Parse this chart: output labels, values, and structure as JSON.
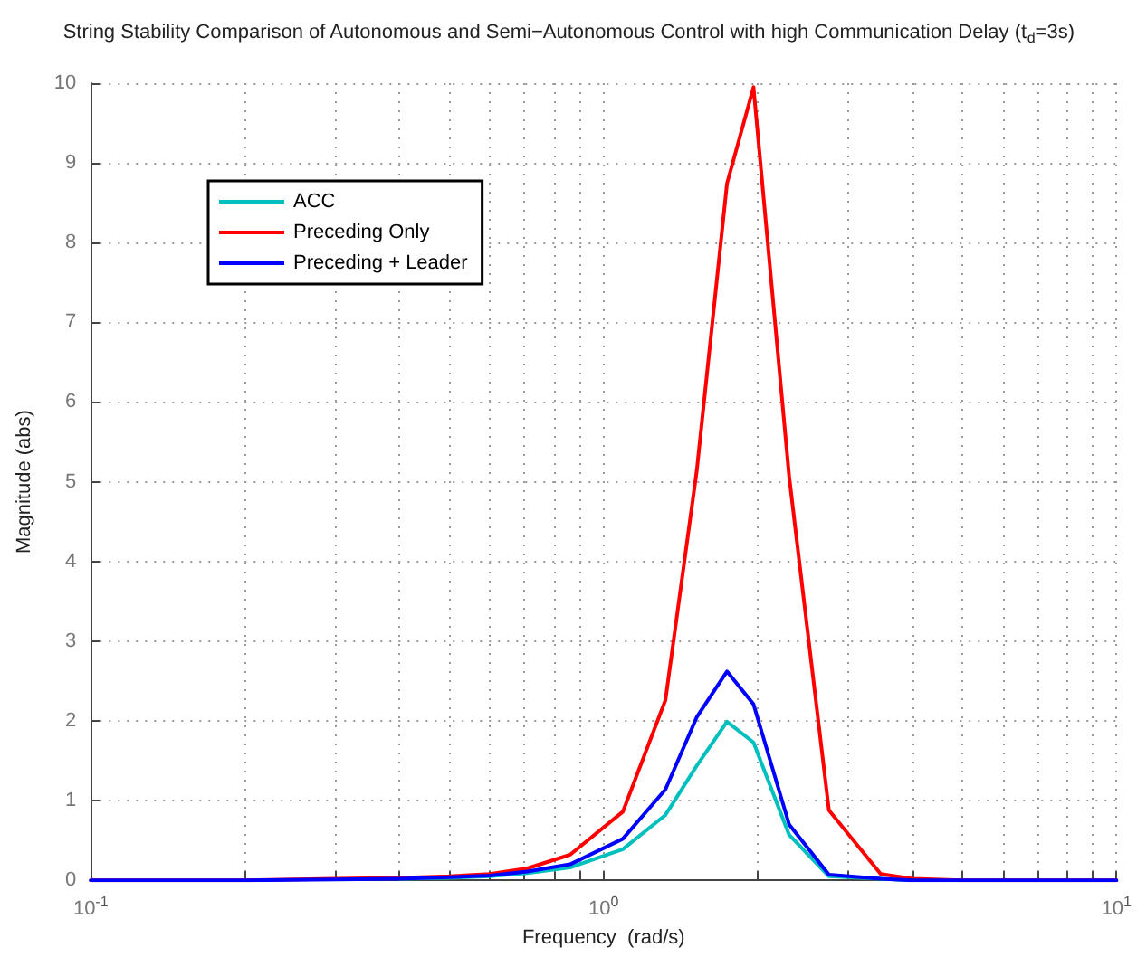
{
  "chart_data": {
    "type": "line",
    "title": "String Stability Comparison of Autonomous and Semi−Autonomous Control with high Communication Delay (t$_{d}$=3s)",
    "xlabel": "Frequency  (rad/s)",
    "ylabel": "Magnitude (abs)",
    "x": [
      0.1,
      0.2,
      0.3,
      0.4,
      0.5,
      0.6,
      0.71,
      0.86,
      1.09,
      1.32,
      1.52,
      1.74,
      1.96,
      2.3,
      2.75,
      3.47,
      4.0,
      5,
      7,
      10
    ],
    "series": [
      {
        "name": "ACC",
        "color": "#00bfbf",
        "values": [
          null,
          null,
          null,
          0.02,
          0.03,
          0.05,
          0.09,
          0.16,
          0.39,
          0.82,
          1.44,
          1.99,
          1.73,
          0.57,
          0.05,
          0.02,
          0,
          null,
          null,
          null
        ]
      },
      {
        "name": "Preceding Only",
        "color": "#ff0000",
        "values": [
          0,
          0,
          0.02,
          0.03,
          0.05,
          0.08,
          0.15,
          0.32,
          0.86,
          2.26,
          5.15,
          8.74,
          9.95,
          5.07,
          0.88,
          0.08,
          0.02,
          0,
          0,
          0
        ]
      },
      {
        "name": "Preceding + Leader",
        "color": "#0000ff",
        "values": [
          0,
          0,
          0.01,
          0.02,
          0.04,
          0.06,
          0.11,
          0.2,
          0.52,
          1.14,
          2.05,
          2.62,
          2.21,
          0.7,
          0.07,
          0.02,
          0,
          0,
          0,
          0
        ]
      }
    ],
    "log": "x",
    "xlim": [
      0.1,
      10
    ],
    "xticks": [
      {
        "value": 0.1,
        "label": "10$^{-1}$"
      },
      {
        "value": 0.2,
        "label": null
      },
      {
        "value": 0.3,
        "label": null
      },
      {
        "value": 0.4,
        "label": null
      },
      {
        "value": 0.5,
        "label": null
      },
      {
        "value": 0.6,
        "label": null
      },
      {
        "value": 0.7,
        "label": null
      },
      {
        "value": 0.8,
        "label": null
      },
      {
        "value": 0.9,
        "label": null
      },
      {
        "value": 1,
        "label": "10$^{0}$"
      },
      {
        "value": 2,
        "label": null
      },
      {
        "value": 3,
        "label": null
      },
      {
        "value": 4,
        "label": null
      },
      {
        "value": 5,
        "label": null
      },
      {
        "value": 6,
        "label": null
      },
      {
        "value": 7,
        "label": null
      },
      {
        "value": 8,
        "label": null
      },
      {
        "value": 9,
        "label": null
      },
      {
        "value": 10,
        "label": "10$^{1}$"
      }
    ],
    "ylim": [
      0,
      10
    ],
    "yticks": [
      0,
      1,
      2,
      3,
      4,
      5,
      6,
      7,
      8,
      9,
      10
    ],
    "grid": true,
    "legend": "top left",
    "marker": "none",
    "line_style": "solid"
  }
}
